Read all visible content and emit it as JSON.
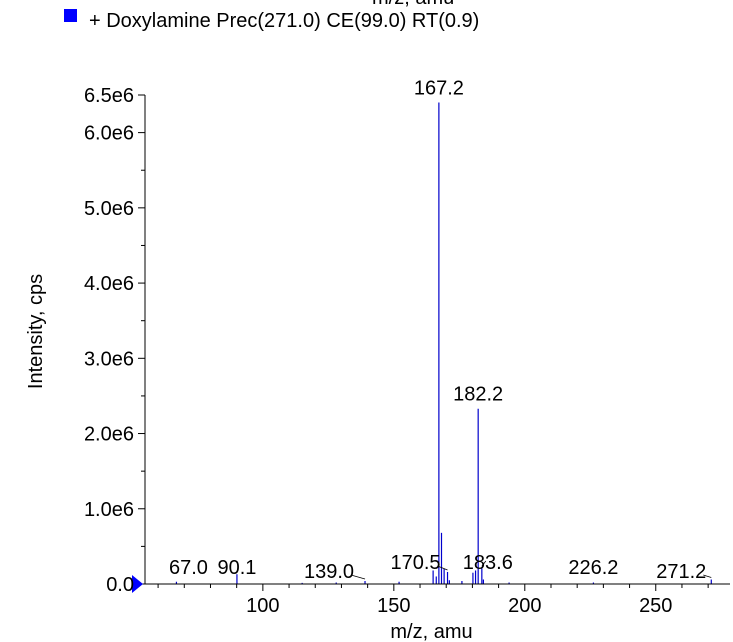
{
  "chart_data": {
    "type": "bar",
    "title": "",
    "legend": {
      "placement": "top-left",
      "entries": [
        {
          "name": "+ Doxylamine Prec(271.0) CE(99.0) RT(0.9)",
          "color": "#0000ff"
        }
      ]
    },
    "top_cut_label": "m/z, amu",
    "xlabel": "m/z, amu",
    "ylabel": "Intensity, cps",
    "xlim": [
      55,
      273
    ],
    "ylim": [
      0,
      6500000.0
    ],
    "x_ticks": [
      {
        "value": 100,
        "label": "100"
      },
      {
        "value": 150,
        "label": "150"
      },
      {
        "value": 200,
        "label": "200"
      },
      {
        "value": 250,
        "label": "250"
      }
    ],
    "y_ticks": [
      {
        "value": 0,
        "label": "0.0"
      },
      {
        "value": 1000000,
        "label": "1.0e6"
      },
      {
        "value": 2000000,
        "label": "2.0e6"
      },
      {
        "value": 3000000,
        "label": "3.0e6"
      },
      {
        "value": 4000000,
        "label": "4.0e6"
      },
      {
        "value": 5000000,
        "label": "5.0e6"
      },
      {
        "value": 6000000,
        "label": "6.0e6"
      },
      {
        "value": 6500000,
        "label": "6.5e6"
      }
    ],
    "grid": false,
    "bar_color": "#0000cc",
    "series": [
      {
        "x": [
          67.0,
          90.1,
          115.0,
          128.0,
          139.0,
          152.0,
          165.0,
          166.2,
          167.2,
          168.2,
          169.2,
          170.5,
          171.2,
          176.0,
          180.2,
          181.2,
          182.2,
          183.6,
          184.2,
          194.0,
          226.2,
          271.2
        ],
        "y": [
          30000,
          130000,
          15000,
          20000,
          40000,
          30000,
          180000,
          100000,
          6400000,
          680000,
          200000,
          160000,
          50000,
          40000,
          150000,
          180000,
          2330000,
          210000,
          60000,
          20000,
          20000,
          60000
        ]
      }
    ],
    "peak_labels": [
      {
        "x": 167.2,
        "label": "167.2",
        "leader": false
      },
      {
        "x": 182.2,
        "label": "182.2",
        "leader": false
      },
      {
        "x": 67.0,
        "label": "67.0",
        "leader": false
      },
      {
        "x": 90.1,
        "label": "90.1",
        "leader": false
      },
      {
        "x": 139.0,
        "label": "139.0",
        "leader": true
      },
      {
        "x": 170.5,
        "label": "170.5",
        "leader": true
      },
      {
        "x": 183.6,
        "label": "183.6",
        "leader": true
      },
      {
        "x": 226.2,
        "label": "226.2",
        "leader": false
      },
      {
        "x": 271.2,
        "label": "271.2",
        "leader": true
      }
    ]
  }
}
